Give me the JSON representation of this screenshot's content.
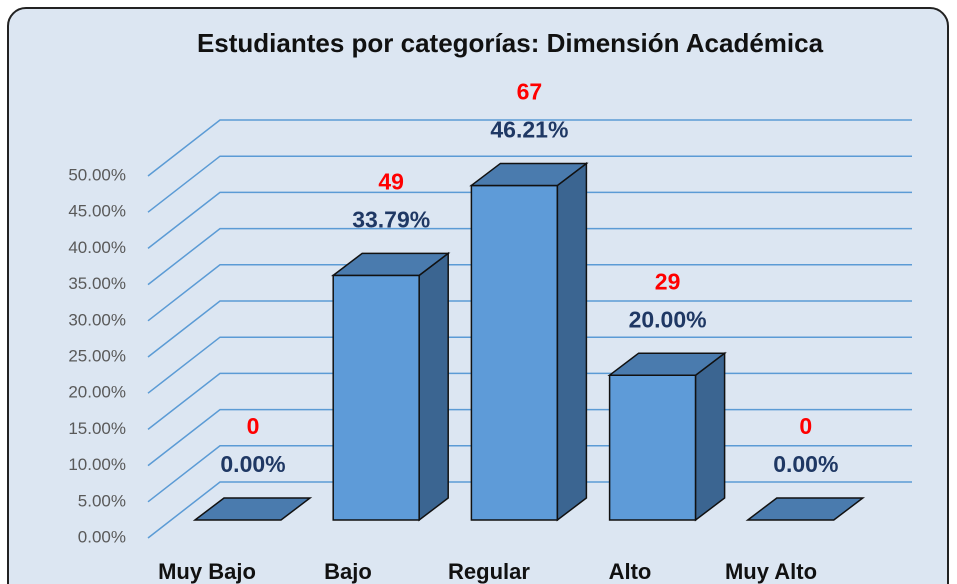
{
  "chart_data": {
    "type": "bar3d",
    "title": "Estudiantes por categorías: Dimensión Académica",
    "categories": [
      "Muy Bajo",
      "Bajo",
      "Regular",
      "Alto",
      "Muy Alto"
    ],
    "values": [
      0,
      33.79,
      46.21,
      20,
      0
    ],
    "value_labels": [
      "0.00%",
      "33.79%",
      "46.21%",
      "20.00%",
      "0.00%"
    ],
    "counts": [
      0,
      49,
      67,
      29,
      0
    ],
    "color": "#5e9bd8",
    "ylim": [
      0,
      50
    ],
    "yticks": [
      {
        "value": 0,
        "label": "0.00%"
      },
      {
        "value": 5,
        "label": "5.00%"
      },
      {
        "value": 10,
        "label": "10.00%"
      },
      {
        "value": 15,
        "label": "15.00%"
      },
      {
        "value": 20,
        "label": "20.00%"
      },
      {
        "value": 25,
        "label": "25.00%"
      },
      {
        "value": 30,
        "label": "30.00%"
      },
      {
        "value": 35,
        "label": "35.00%"
      },
      {
        "value": 40,
        "label": "40.00%"
      },
      {
        "value": 45,
        "label": "45.00%"
      },
      {
        "value": 50,
        "label": "50.00%"
      }
    ],
    "grid": true
  }
}
